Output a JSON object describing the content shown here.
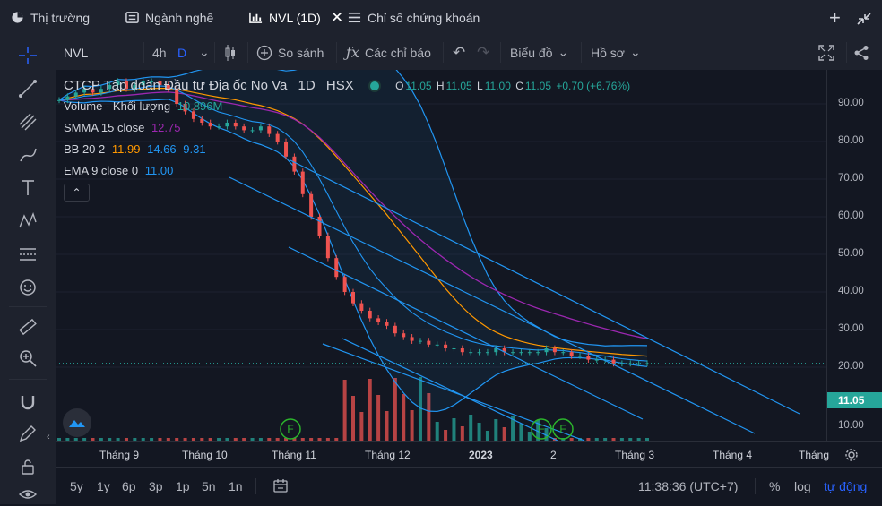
{
  "tabs": [
    {
      "label": "Thị trường",
      "icon": "pie-chart-icon"
    },
    {
      "label": "Ngành nghề",
      "icon": "list-icon"
    },
    {
      "label": "NVL (1D)",
      "icon": "chart-icon"
    },
    {
      "label": "Chỉ số chứng khoán",
      "icon": "menu-icon"
    }
  ],
  "toolbar": {
    "symbol": "NVL",
    "interval_4h": "4h",
    "interval_d": "D",
    "compare": "So sánh",
    "indicators": "Các chỉ báo",
    "chart_type": "Biểu đồ",
    "profile": "Hồ sơ"
  },
  "legend": {
    "title": "CTCP Tập đoàn Đầu tư Địa ốc No Va",
    "interval": "1D",
    "exchange": "HSX",
    "o_label": "O",
    "o": "11.05",
    "h_label": "H",
    "h": "11.05",
    "l_label": "L",
    "l": "11.00",
    "c_label": "C",
    "c": "11.05",
    "change": "+0.70 (+6.76%)",
    "volume_label": "Volume - Khối lượng",
    "volume_value": "10.896M",
    "smma_label": "SMMA 15 close",
    "smma_value": "12.75",
    "bb_label": "BB 20 2",
    "bb_basis": "11.99",
    "bb_upper": "14.66",
    "bb_lower": "9.31",
    "ema_label": "EMA 9 close 0",
    "ema_value": "11.00"
  },
  "price_axis": {
    "labels": [
      "90.00",
      "80.00",
      "70.00",
      "60.00",
      "50.00",
      "40.00",
      "30.00",
      "20.00",
      "10.00"
    ],
    "current_price": "11.05"
  },
  "time_axis": {
    "labels": [
      "Tháng 9",
      "Tháng 10",
      "Tháng 11",
      "Tháng 12",
      "2023",
      "2",
      "Tháng 3",
      "Tháng 4",
      "Tháng"
    ]
  },
  "bottom_bar": {
    "ranges": [
      "5y",
      "1y",
      "6p",
      "3p",
      "1p",
      "5n",
      "1n"
    ],
    "time": "11:38:36 (UTC+7)",
    "percent": "%",
    "log": "log",
    "auto": "tự động"
  },
  "markers": {
    "f_label": "F"
  },
  "colors": {
    "up": "#26a69a",
    "down": "#ef5350",
    "accent": "#2962ff",
    "channel": "#2196f3"
  },
  "chart_data": {
    "type": "candlestick",
    "title": "CTCP Tập đoàn Đầu tư Địa ốc No Va",
    "ylim": [
      0,
      95
    ],
    "x_ticks": [
      "Tháng 9",
      "Tháng 10",
      "Tháng 11",
      "Tháng 12",
      "2023",
      "2",
      "Tháng 3",
      "Tháng 4",
      "Tháng"
    ],
    "close_series": [
      81,
      82,
      83,
      84,
      83,
      84,
      85,
      86,
      84,
      85,
      86,
      86,
      85,
      84,
      80,
      78,
      76,
      75,
      74,
      74,
      75,
      74,
      73,
      73,
      74,
      72,
      70,
      66,
      62,
      56,
      50,
      45,
      39,
      34,
      30,
      27,
      25,
      23,
      22,
      21,
      19,
      18,
      17,
      17,
      16,
      16,
      15,
      15,
      14,
      14,
      14,
      14,
      15,
      14,
      14,
      14,
      14,
      14,
      15,
      14,
      14,
      13,
      13,
      12,
      12,
      12,
      11,
      11,
      11,
      11,
      11.05
    ],
    "current": 11.05
  }
}
